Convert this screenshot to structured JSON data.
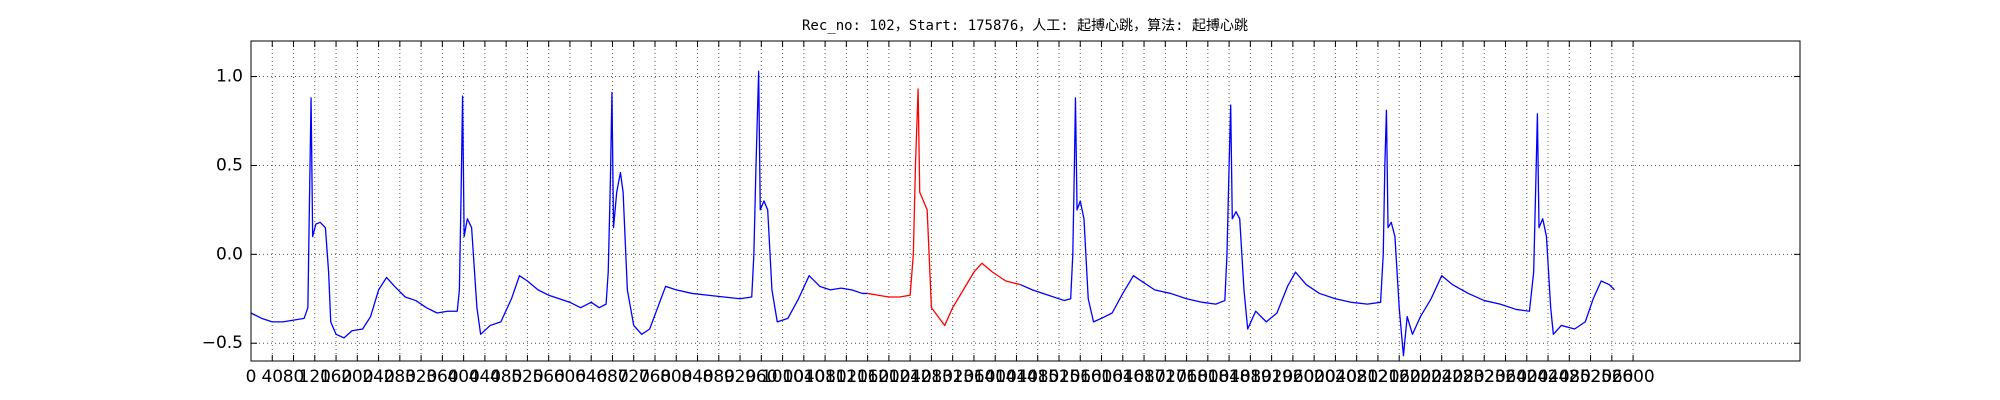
{
  "chart_data": {
    "type": "line",
    "title": "Rec_no: 102，Start: 175876，人工: 起搏心跳，算法: 起搏心跳",
    "xlim": [
      0,
      2914
    ],
    "ylim": [
      -0.6,
      1.2
    ],
    "xticks": [
      0,
      40,
      80,
      120,
      160,
      200,
      240,
      280,
      320,
      360,
      400,
      440,
      480,
      520,
      560,
      600,
      640,
      680,
      720,
      760,
      800,
      840,
      880,
      920,
      960,
      1000,
      1040,
      1080,
      1120,
      1160,
      1200,
      1240,
      1280,
      1320,
      1360,
      1400,
      1440,
      1480,
      1520,
      1560,
      1600,
      1640,
      1680,
      1720,
      1760,
      1800,
      1840,
      1880,
      1920,
      1960,
      2000,
      2040,
      2080,
      2120,
      2160,
      2200,
      2240,
      2280,
      2320,
      2360,
      2400,
      2440,
      2480,
      2520,
      2560,
      2600
    ],
    "yticks": [
      {
        "value": -0.5,
        "label": "−0.5"
      },
      {
        "value": 0,
        "label": "0.0"
      },
      0.5,
      {
        "value": 1,
        "label": "1.0"
      }
    ],
    "grid": true,
    "series": [
      {
        "color": "#0000ff",
        "x": [
          0,
          20,
          40,
          60,
          80,
          100,
          107,
          110,
          113,
          116,
          122,
          130,
          140,
          146,
          150,
          160,
          175,
          190,
          210,
          225,
          240,
          255,
          270,
          290,
          310,
          330,
          350,
          370,
          388,
          392,
          395,
          398,
          401,
          407,
          415,
          425,
          432,
          450,
          470,
          490,
          505,
          520,
          540,
          560,
          580,
          600,
          620,
          640,
          655,
          668,
          672,
          676,
          679,
          682,
          688,
          695,
          700,
          708,
          720,
          735,
          750,
          765,
          780,
          800,
          830,
          860,
          890,
          920,
          942,
          946,
          950,
          955,
          958,
          965,
          972,
          980,
          990,
          1010,
          1030,
          1050,
          1070,
          1090,
          1110,
          1130,
          1150,
          1160
        ],
        "values": [
          -0.33,
          -0.36,
          -0.38,
          -0.38,
          -0.37,
          -0.36,
          -0.3,
          0.3,
          0.88,
          0.1,
          0.17,
          0.18,
          0.15,
          -0.1,
          -0.38,
          -0.45,
          -0.47,
          -0.43,
          -0.42,
          -0.35,
          -0.2,
          -0.13,
          -0.18,
          -0.24,
          -0.26,
          -0.3,
          -0.33,
          -0.32,
          -0.32,
          -0.2,
          0.3,
          0.89,
          0.1,
          0.2,
          0.15,
          -0.3,
          -0.45,
          -0.4,
          -0.38,
          -0.25,
          -0.12,
          -0.15,
          -0.2,
          -0.23,
          -0.25,
          -0.27,
          -0.3,
          -0.27,
          -0.3,
          -0.28,
          -0.1,
          0.4,
          0.91,
          0.15,
          0.35,
          0.46,
          0.35,
          -0.2,
          -0.4,
          -0.45,
          -0.42,
          -0.3,
          -0.18,
          -0.2,
          -0.22,
          -0.23,
          -0.24,
          -0.25,
          -0.24,
          0,
          0.5,
          1.03,
          0.25,
          0.3,
          0.25,
          -0.2,
          -0.38,
          -0.36,
          -0.25,
          -0.12,
          -0.18,
          -0.2,
          -0.19,
          -0.2,
          -0.22,
          -0.22
        ]
      },
      {
        "color": "#ff0000",
        "x": [
          1160,
          1180,
          1200,
          1220,
          1240,
          1246,
          1250,
          1255,
          1258,
          1265,
          1272,
          1280,
          1295,
          1305,
          1320,
          1340,
          1360,
          1375,
          1395,
          1420,
          1447
        ],
        "values": [
          -0.22,
          -0.23,
          -0.24,
          -0.24,
          -0.23,
          0,
          0.5,
          0.93,
          0.35,
          0.3,
          0.25,
          -0.3,
          -0.36,
          -0.4,
          -0.3,
          -0.2,
          -0.1,
          -0.05,
          -0.1,
          -0.15,
          -0.17
        ]
      },
      {
        "color": "#0000ff",
        "x": [
          1447,
          1470,
          1500,
          1530,
          1542,
          1546,
          1549,
          1551,
          1554,
          1560,
          1567,
          1575,
          1585,
          1600,
          1620,
          1640,
          1660,
          1680,
          1700,
          1730,
          1760,
          1790,
          1815,
          1832,
          1836,
          1840,
          1843,
          1846,
          1853,
          1860,
          1868,
          1875,
          1890,
          1910,
          1930,
          1950,
          1965,
          1985,
          2010,
          2040,
          2070,
          2100,
          2125,
          2130,
          2133,
          2136,
          2139,
          2145,
          2152,
          2160,
          2168,
          2175,
          2185,
          2200,
          2220,
          2240,
          2260,
          2290,
          2320,
          2350,
          2380,
          2405,
          2413,
          2417,
          2420,
          2423,
          2430,
          2437,
          2445,
          2450,
          2465,
          2490,
          2510,
          2525,
          2540,
          2555,
          2565
        ],
        "values": [
          -0.17,
          -0.2,
          -0.23,
          -0.26,
          -0.25,
          0,
          0.5,
          0.88,
          0.25,
          0.3,
          0.2,
          -0.25,
          -0.38,
          -0.36,
          -0.33,
          -0.22,
          -0.12,
          -0.16,
          -0.2,
          -0.22,
          -0.25,
          -0.27,
          -0.28,
          -0.26,
          0,
          0.5,
          0.84,
          0.2,
          0.24,
          0.2,
          -0.2,
          -0.42,
          -0.32,
          -0.38,
          -0.33,
          -0.18,
          -0.1,
          -0.17,
          -0.22,
          -0.25,
          -0.27,
          -0.28,
          -0.27,
          0,
          0.5,
          0.81,
          0.15,
          0.18,
          0.1,
          -0.3,
          -0.57,
          -0.35,
          -0.45,
          -0.35,
          -0.25,
          -0.12,
          -0.17,
          -0.22,
          -0.26,
          -0.28,
          -0.31,
          -0.32,
          -0.1,
          0.4,
          0.79,
          0.15,
          0.2,
          0.1,
          -0.3,
          -0.45,
          -0.4,
          -0.42,
          -0.38,
          -0.25,
          -0.15,
          -0.17,
          -0.2
        ]
      }
    ]
  }
}
